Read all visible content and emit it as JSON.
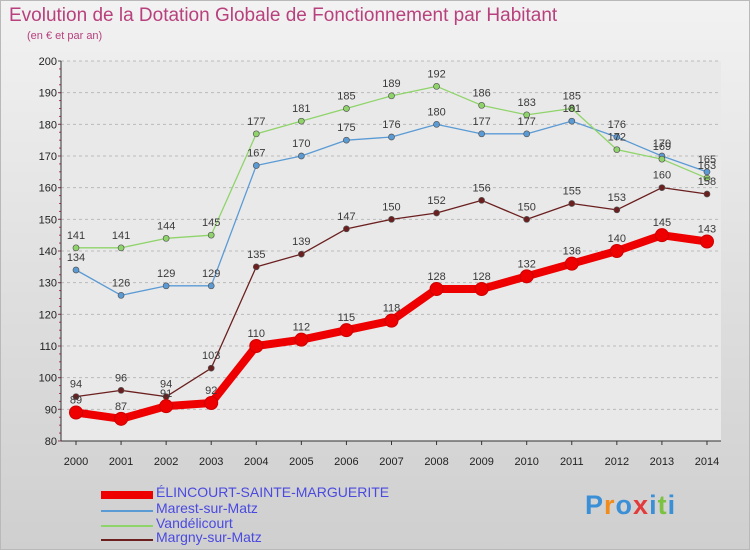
{
  "header": {
    "title": "Evolution de la Dotation Globale de Fonctionnement par Habitant",
    "subtitle": "(en € et par an)"
  },
  "chart_data": {
    "type": "line",
    "title": "Evolution de la Dotation Globale de Fonctionnement par Habitant",
    "subtitle": "(en € et par an)",
    "xlabel": "",
    "ylabel": "",
    "x": [
      "2000",
      "2001",
      "2002",
      "2003",
      "2004",
      "2005",
      "2006",
      "2007",
      "2008",
      "2009",
      "2010",
      "2011",
      "2012",
      "2013",
      "2014"
    ],
    "ylim": [
      80,
      200
    ],
    "yticks": [
      80,
      90,
      100,
      110,
      120,
      130,
      140,
      150,
      160,
      170,
      180,
      190,
      200
    ],
    "grid": "horizontal dashed",
    "legend_position": "bottom-left",
    "series": [
      {
        "name": "ÉLINCOURT-SAINTE-MARGUERITE",
        "color": "#ee0000",
        "values": [
          89,
          87,
          91,
          92,
          110,
          112,
          115,
          118,
          128,
          128,
          132,
          136,
          140,
          145,
          143
        ]
      },
      {
        "name": "Marest-sur-Matz",
        "color": "#5b9bd5",
        "values": [
          134,
          126,
          129,
          129,
          167,
          170,
          175,
          176,
          180,
          177,
          177,
          181,
          176,
          170,
          165
        ]
      },
      {
        "name": "Vandélicourt",
        "color": "#8fd46a",
        "values": [
          141,
          141,
          144,
          145,
          177,
          181,
          185,
          189,
          192,
          186,
          183,
          185,
          172,
          169,
          163
        ]
      },
      {
        "name": "Margny-sur-Matz",
        "color": "#6b1f1f",
        "values": [
          94,
          96,
          94,
          103,
          135,
          139,
          147,
          150,
          152,
          156,
          150,
          155,
          153,
          160,
          158
        ]
      }
    ]
  },
  "logo": {
    "letters": [
      "P",
      "r",
      "o",
      "x",
      "i",
      "t",
      "i"
    ],
    "colors": [
      "#3b8fd6",
      "#f08b1c",
      "#3b8fd6",
      "#e23b3b",
      "#3b8fd6",
      "#7cc242",
      "#3b8fd6"
    ]
  }
}
